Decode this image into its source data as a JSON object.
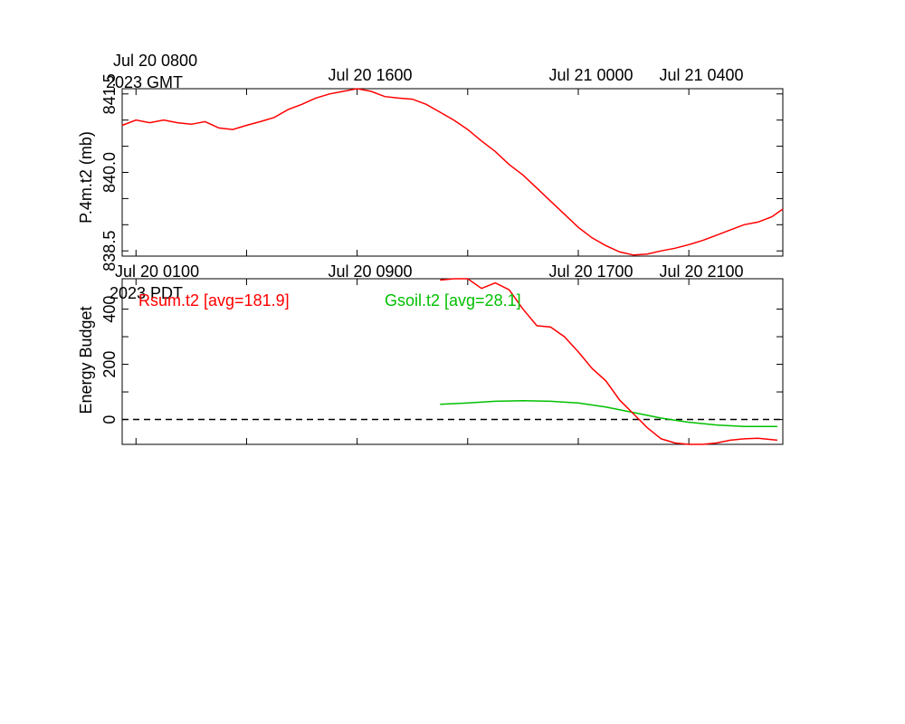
{
  "top_axis_labels": {
    "gmt_first_line1": "Jul 20 0800",
    "gmt_first_line2": "2023 GMT",
    "gmt_ticks": [
      "Jul 20 1600",
      "Jul 21 0000",
      "Jul 21 0400"
    ]
  },
  "middle_axis_labels": {
    "pdt_first_line1": "Jul 20 0100",
    "pdt_first_line2": "2023 PDT",
    "pdt_ticks": [
      "Jul 20 0900",
      "Jul 20 1700",
      "Jul 20 2100"
    ]
  },
  "chart_data": [
    {
      "type": "line",
      "ylabel": "P.4m.t2 (mb)",
      "ylim": [
        838.4,
        841.6
      ],
      "yticks": [
        "838.5",
        "840.0",
        "841.5"
      ],
      "grid": false,
      "x_unit": "hours since Jul 20 0100 PDT",
      "xlim": [
        -0.5,
        23.4
      ],
      "series": [
        {
          "name": "P.4m.t2",
          "color": "#ff0000",
          "x": [
            -0.5,
            0,
            0.5,
            1,
            1.5,
            2,
            2.5,
            3,
            3.5,
            4,
            4.5,
            5,
            5.5,
            6,
            6.5,
            7,
            7.5,
            8,
            8.5,
            9,
            9.5,
            10,
            10.5,
            11,
            11.5,
            12,
            12.5,
            13,
            13.5,
            14,
            14.5,
            15,
            15.5,
            16,
            16.5,
            17,
            17.5,
            18,
            18.5,
            19,
            19.5,
            20,
            20.5,
            21,
            21.5,
            22,
            22.5,
            23,
            23.4
          ],
          "values": [
            840.9,
            841.0,
            840.95,
            841.0,
            840.95,
            840.92,
            840.97,
            840.85,
            840.82,
            840.9,
            840.97,
            841.05,
            841.2,
            841.3,
            841.42,
            841.5,
            841.55,
            841.6,
            841.55,
            841.45,
            841.42,
            841.4,
            841.3,
            841.15,
            841.0,
            840.82,
            840.6,
            840.4,
            840.15,
            839.95,
            839.7,
            839.45,
            839.2,
            838.95,
            838.75,
            838.6,
            838.48,
            838.42,
            838.44,
            838.5,
            838.55,
            838.62,
            838.7,
            838.8,
            838.9,
            839.0,
            839.05,
            839.15,
            839.3
          ]
        }
      ]
    },
    {
      "type": "line",
      "ylabel": "Energy Budget",
      "ylim": [
        -90,
        510
      ],
      "yticks": [
        "0",
        "200",
        "400"
      ],
      "grid": false,
      "x_unit": "hours since Jul 20 0100 PDT",
      "xlim": [
        -0.5,
        23.4
      ],
      "reference_line": {
        "y": 0,
        "style": "dashed",
        "color": "#000000"
      },
      "legend": [
        {
          "label": "Rsum.t2 [avg=181.9]",
          "color": "#ff0000"
        },
        {
          "label": "Gsoil.t2 [avg=28.1]",
          "color": "#00c000"
        }
      ],
      "series": [
        {
          "name": "Rsum.t2",
          "color": "#ff0000",
          "x": [
            11.0,
            11.5,
            12.0,
            12.5,
            13.0,
            13.5,
            14.0,
            14.5,
            15.0,
            15.5,
            16.0,
            16.5,
            17.0,
            17.5,
            18.0,
            18.5,
            19.0,
            19.5,
            20.0,
            20.5,
            21.0,
            21.5,
            22.0,
            22.5,
            23.2
          ],
          "values": [
            505,
            515,
            510,
            475,
            495,
            470,
            400,
            340,
            335,
            300,
            245,
            185,
            140,
            70,
            20,
            -30,
            -70,
            -85,
            -90,
            -95,
            -85,
            -75,
            -70,
            -68,
            -75
          ]
        },
        {
          "name": "Gsoil.t2",
          "color": "#00c000",
          "x": [
            11.0,
            12.0,
            13.0,
            14.0,
            15.0,
            16.0,
            17.0,
            18.0,
            19.0,
            20.0,
            21.0,
            22.0,
            23.2
          ],
          "values": [
            55,
            60,
            66,
            68,
            66,
            60,
            45,
            25,
            5,
            -10,
            -20,
            -25,
            -25
          ]
        }
      ]
    }
  ]
}
